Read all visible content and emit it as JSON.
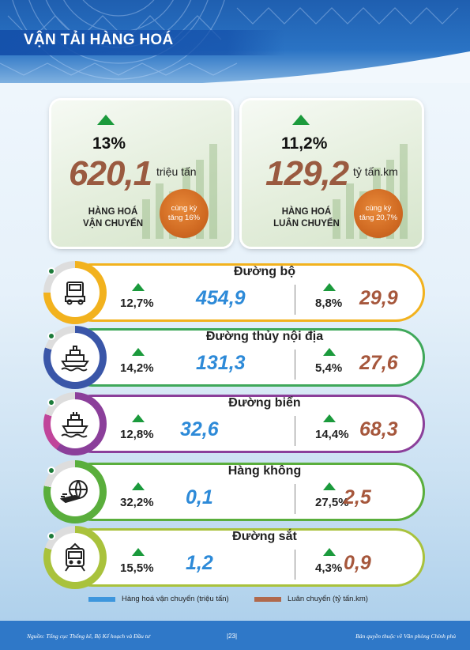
{
  "page_title": "VẬN TẢI HÀNG HOÁ",
  "summary": [
    {
      "pct": "13%",
      "value": "620,1",
      "unit": "triệu tấn",
      "label_1": "HÀNG HOÁ",
      "label_2": "VẬN CHUYỂN",
      "badge_1": "cùng kỳ",
      "badge_2": "tăng 16%"
    },
    {
      "pct": "11,2%",
      "value": "129,2",
      "unit": "tỷ tấn.km",
      "label_1": "HÀNG HOÁ",
      "label_2": "LUÂN CHUYỂN",
      "badge_1": "cùng kỳ",
      "badge_2": "tăng 20,7%"
    }
  ],
  "rows": [
    {
      "title": "Đường bộ",
      "pct_1": "12,7%",
      "val_1": "454,9",
      "pct_2": "8,8%",
      "val_2": "29,9",
      "icon": "truck-icon",
      "color": "#f2b21e"
    },
    {
      "title": "Đường thủy nội địa",
      "pct_1": "14,2%",
      "val_1": "131,3",
      "pct_2": "5,4%",
      "val_2": "27,6",
      "icon": "ferry-icon",
      "color": "#3a56a8"
    },
    {
      "title": "Đường biển",
      "pct_1": "12,8%",
      "val_1": "32,6",
      "pct_2": "14,4%",
      "val_2": "68,3",
      "icon": "ship-icon",
      "color": "#8b3f9a"
    },
    {
      "title": "Hàng không",
      "pct_1": "32,2%",
      "val_1": "0,1",
      "pct_2": "27,5%",
      "val_2": "2,5",
      "icon": "plane-globe-icon",
      "color": "#5aae3c"
    },
    {
      "title": "Đường sắt",
      "pct_1": "15,5%",
      "val_1": "1,2",
      "pct_2": "4,3%",
      "val_2": "0,9",
      "icon": "train-icon",
      "color": "#a9c23c"
    }
  ],
  "legend": {
    "blue_label": "Hàng hoá vận chuyển (triệu tấn)",
    "brown_label": "Luân chuyển (tỷ tấn.km)",
    "blue_color": "#3d96dd",
    "brown_color": "#b0694c"
  },
  "footer": {
    "source": "Nguồn: Tổng cục Thống kê, Bộ Kế hoạch và Đầu tư",
    "page": "|23|",
    "copyright": "Bản quyền thuộc về Văn phòng Chính phủ"
  }
}
